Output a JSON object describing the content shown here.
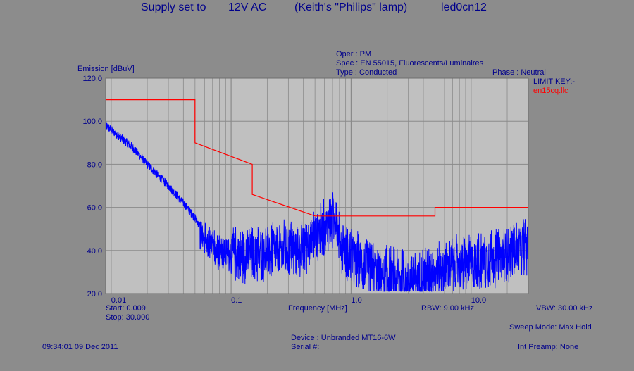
{
  "title": {
    "part1": "Supply set to",
    "part2": "12V AC",
    "part3": "(Keith's \"Philips\" lamp)",
    "part4": "led0cn12"
  },
  "header": {
    "oper": "Oper : PM",
    "spec": "Spec : EN 55015, Fluorescents/Luminaires",
    "type": "Type : Conducted",
    "phase": "Phase : Neutral",
    "limit_key_label": "LIMIT KEY:-",
    "limit_key_name": "en15cq.llc"
  },
  "footer": {
    "start": "Start: 0.009",
    "stop": "Stop: 30.000",
    "rbw": "RBW: 9.00 kHz",
    "vbw": "VBW: 30.00 kHz",
    "sweep_mode": "Sweep Mode: Max Hold",
    "device": "Device : Unbranded MT16-6W",
    "serial": "Serial #:",
    "timestamp": "09:34:01 09 Dec 2011",
    "preamp": "Int Preamp: None"
  },
  "colors": {
    "plot_bg": "#c0c0c0",
    "grid": "#8a8a8a",
    "limit": "#ff0000",
    "trace": "#0000ff",
    "text": "#00008b"
  },
  "chart_data": {
    "type": "line",
    "xscale": "log",
    "xlim": [
      0.009,
      30.0
    ],
    "ylim": [
      20.0,
      120.0
    ],
    "xlabel": "Frequency [MHz]",
    "ylabel": "Emission [dBuV]",
    "y_ticks": [
      "20.0",
      "40.0",
      "60.0",
      "80.0",
      "100.0",
      "120.0"
    ],
    "x_ticks": [
      {
        "value": 0.01,
        "label": "0.01"
      },
      {
        "value": 0.1,
        "label": "0.1"
      },
      {
        "value": 1.0,
        "label": "1.0"
      },
      {
        "value": 10.0,
        "label": "10.0"
      }
    ],
    "grid": true,
    "series": [
      {
        "name": "en15cq.llc",
        "kind": "limit",
        "x": [
          0.009,
          0.05,
          0.05,
          0.15,
          0.15,
          0.5,
          5.0,
          5.0,
          30.0
        ],
        "y": [
          110,
          110,
          90,
          80,
          66,
          56,
          56,
          60,
          60
        ]
      },
      {
        "name": "",
        "kind": "trace",
        "x": [
          0.009,
          0.01,
          0.015,
          0.02,
          0.03,
          0.04,
          0.05,
          0.06,
          0.08,
          0.1,
          0.15,
          0.2,
          0.3,
          0.4,
          0.5,
          0.6,
          0.7,
          0.75,
          0.8,
          0.9,
          1.0,
          1.3,
          1.7,
          2.0,
          3.0,
          4.0,
          5.0,
          7.0,
          10.0,
          15.0,
          20.0,
          30.0
        ],
        "y": [
          98,
          96,
          88,
          80,
          70,
          62,
          55,
          48,
          43,
          42,
          42,
          43,
          44,
          45,
          52,
          54,
          57,
          62,
          48,
          44,
          40,
          37,
          34,
          32,
          30,
          32,
          34,
          37,
          38,
          40,
          42,
          46
        ]
      }
    ]
  }
}
